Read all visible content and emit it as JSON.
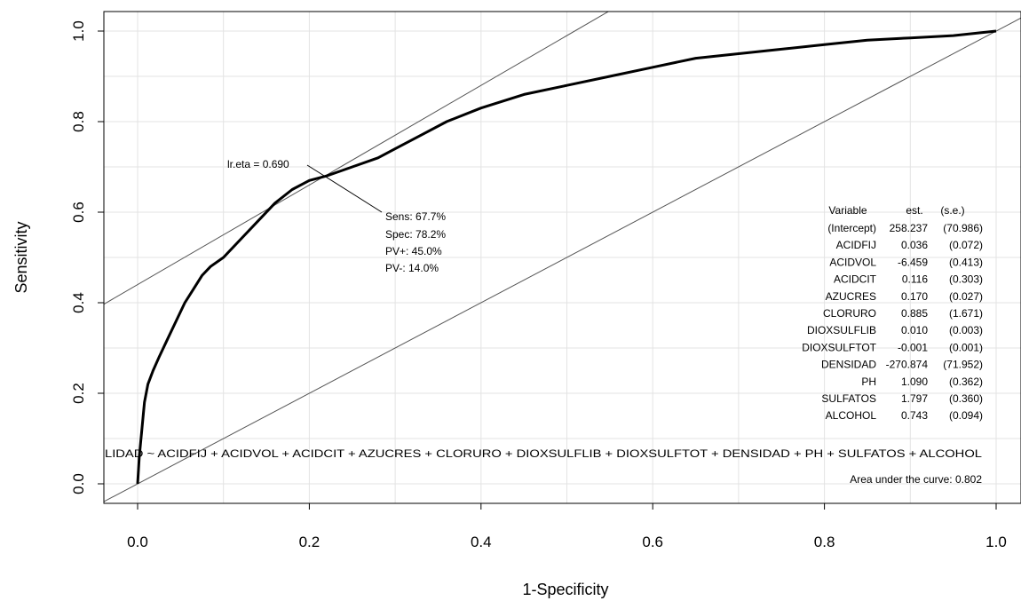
{
  "chart_data": {
    "type": "line",
    "xlabel": "1-Specificity",
    "ylabel": "Sensitivity",
    "xlim": [
      0,
      1
    ],
    "ylim": [
      0,
      1
    ],
    "x_ticks": [
      "0.0",
      "0.2",
      "0.4",
      "0.6",
      "0.8",
      "1.0"
    ],
    "y_ticks": [
      "0.0",
      "0.2",
      "0.4",
      "0.6",
      "0.8",
      "1.0"
    ],
    "grid": true,
    "series": [
      {
        "x": [
          0,
          0.002,
          0.005,
          0.008,
          0.012,
          0.018,
          0.025,
          0.035,
          0.045,
          0.055,
          0.065,
          0.075,
          0.085,
          0.1,
          0.12,
          0.14,
          0.16,
          0.18,
          0.2,
          0.22,
          0.25,
          0.28,
          0.3,
          0.33,
          0.36,
          0.4,
          0.45,
          0.5,
          0.55,
          0.6,
          0.65,
          0.7,
          0.75,
          0.8,
          0.85,
          0.9,
          0.95,
          1.0
        ],
        "y": [
          0,
          0.06,
          0.12,
          0.18,
          0.22,
          0.25,
          0.28,
          0.32,
          0.36,
          0.4,
          0.43,
          0.46,
          0.48,
          0.5,
          0.54,
          0.58,
          0.62,
          0.65,
          0.67,
          0.68,
          0.7,
          0.72,
          0.74,
          0.77,
          0.8,
          0.83,
          0.86,
          0.88,
          0.9,
          0.92,
          0.94,
          0.95,
          0.96,
          0.97,
          0.98,
          0.985,
          0.99,
          1.0
        ]
      }
    ],
    "reference_lines": [
      {
        "x": [
          0,
          1
        ],
        "y": [
          0,
          1
        ]
      },
      {
        "slope": 1.1,
        "intercept": 0.44
      }
    ],
    "cutoff_point": {
      "x": 0.218,
      "y": 0.677
    },
    "annotations": {
      "cutoff_label": "lr.eta = 0.690",
      "stats": [
        "Sens: 67.7%",
        "Spec: 78.2%",
        "PV+: 45.0%",
        "PV-: 14.0%"
      ],
      "model_header": [
        "Variable",
        "est.",
        "(s.e.)"
      ],
      "model_table": [
        [
          "(Intercept)",
          "258.237",
          "(70.986)"
        ],
        [
          "ACIDFIJ",
          "0.036",
          "(0.072)"
        ],
        [
          "ACIDVOL",
          "-6.459",
          "(0.413)"
        ],
        [
          "ACIDCIT",
          "0.116",
          "(0.303)"
        ],
        [
          "AZUCRES",
          "0.170",
          "(0.027)"
        ],
        [
          "CLORURO",
          "0.885",
          "(1.671)"
        ],
        [
          "DIOXSULFLIB",
          "0.010",
          "(0.003)"
        ],
        [
          "DIOXSULFTOT",
          "-0.001",
          "(0.001)"
        ],
        [
          "DENSIDAD",
          "-270.874",
          "(71.952)"
        ],
        [
          "PH",
          "1.090",
          "(0.362)"
        ],
        [
          "SULFATOS",
          "1.797",
          "(0.360)"
        ],
        [
          "ALCOHOL",
          "0.743",
          "(0.094)"
        ]
      ],
      "formula": "LIDAD ~ ACIDFIJ + ACIDVOL + ACIDCIT + AZUCRES + CLORURO + DIOXSULFLIB + DIOXSULFTOT + DENSIDAD + PH + SULFATOS + ALCOHOL",
      "auc": "Area under the curve: 0.802"
    }
  }
}
